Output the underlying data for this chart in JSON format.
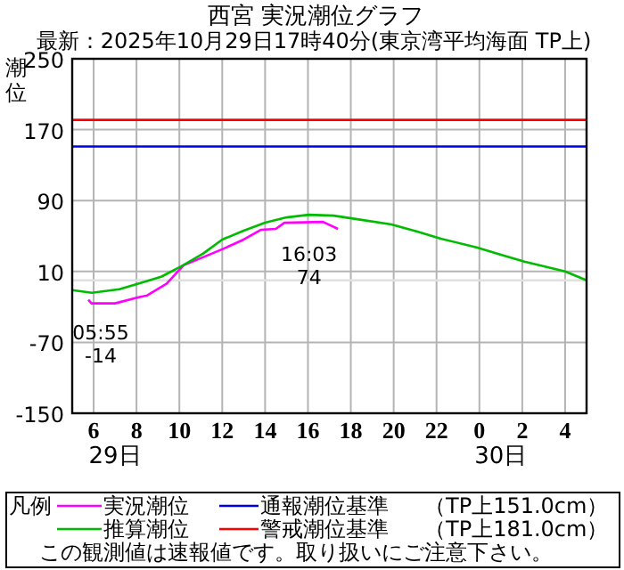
{
  "chart_data": {
    "type": "line",
    "title": "西宮 実況潮位グラフ",
    "subtitle": "最新：2025年10月29日17時40分(東京湾平均海面 TP上)",
    "ylabel": "潮位",
    "legend_title": "凡例",
    "legend": "bottom",
    "grid": true,
    "xlim": [
      "2025-10-29T05:00",
      "2025-10-30T05:00"
    ],
    "xticks": [
      {
        "value": "2025-10-29T06:00",
        "label": "6"
      },
      {
        "value": "2025-10-29T08:00",
        "label": "8"
      },
      {
        "value": "2025-10-29T10:00",
        "label": "10"
      },
      {
        "value": "2025-10-29T12:00",
        "label": "12"
      },
      {
        "value": "2025-10-29T14:00",
        "label": "14"
      },
      {
        "value": "2025-10-29T16:00",
        "label": "16"
      },
      {
        "value": "2025-10-29T18:00",
        "label": "18"
      },
      {
        "value": "2025-10-29T20:00",
        "label": "20"
      },
      {
        "value": "2025-10-29T22:00",
        "label": "22"
      },
      {
        "value": "2025-10-30T00:00",
        "label": "0"
      },
      {
        "value": "2025-10-30T02:00",
        "label": "2"
      },
      {
        "value": "2025-10-30T04:00",
        "label": "4"
      }
    ],
    "ylim": [
      -150,
      250
    ],
    "yticks": [
      -150,
      -70,
      10,
      90,
      170,
      250
    ],
    "series": [
      {
        "name": "実況潮位",
        "color": "#ff00ff",
        "x": [
          "2025-10-29T05:45",
          "2025-10-29T05:54",
          "2025-10-29T07:00",
          "2025-10-29T08:06",
          "2025-10-29T08:30",
          "2025-10-29T09:24",
          "2025-10-29T10:12",
          "2025-10-29T11:12",
          "2025-10-29T12:00",
          "2025-10-29T13:00",
          "2025-10-29T13:48",
          "2025-10-29T14:30",
          "2025-10-29T14:54",
          "2025-10-29T16:42",
          "2025-10-29T17:24"
        ],
        "values": [
          -22,
          -26,
          -26,
          -19,
          -17,
          -4,
          17,
          27,
          35,
          46,
          57,
          58,
          65,
          66,
          58
        ]
      },
      {
        "name": "推算潮位",
        "color": "#00bb00",
        "x": [
          "2025-10-29T05:00",
          "2025-10-29T05:55",
          "2025-10-29T07:12",
          "2025-10-29T08:03",
          "2025-10-29T09:09",
          "2025-10-29T10:06",
          "2025-10-29T11:06",
          "2025-10-29T12:00",
          "2025-10-29T13:00",
          "2025-10-29T14:00",
          "2025-10-29T15:00",
          "2025-10-29T16:03",
          "2025-10-29T17:12",
          "2025-10-29T18:18",
          "2025-10-29T19:54",
          "2025-10-29T21:06",
          "2025-10-29T22:12",
          "2025-10-29T23:54",
          "2025-10-30T01:00",
          "2025-10-30T02:06",
          "2025-10-30T04:00",
          "2025-10-30T05:00"
        ],
        "values": [
          -11,
          -14,
          -10,
          -4,
          4,
          16,
          30,
          46,
          56,
          65,
          71,
          74,
          73,
          69,
          63,
          55,
          47,
          37,
          29,
          21,
          10,
          0
        ]
      }
    ],
    "ref_lines": [
      {
        "axis": "y",
        "value": 151,
        "label": "通報潮位基準",
        "color": "#0000dd"
      },
      {
        "axis": "y",
        "value": 181,
        "label": "警戒潮位基準",
        "color": "#ff0000"
      },
      {
        "axis": "y",
        "value": 0,
        "color": "#e0e0e0"
      }
    ],
    "annotations": [
      "29日",
      "30日",
      {
        "text": "05:55\n-14",
        "x": "2025-10-29T05:55",
        "y": -14
      },
      {
        "text": "16:03\n74",
        "x": "2025-10-29T16:03",
        "y": 74
      },
      "（TP上151.0cm）",
      "（TP上181.0cm）",
      "この観測値は速報値です。取り扱いにご注意下さい。"
    ]
  }
}
